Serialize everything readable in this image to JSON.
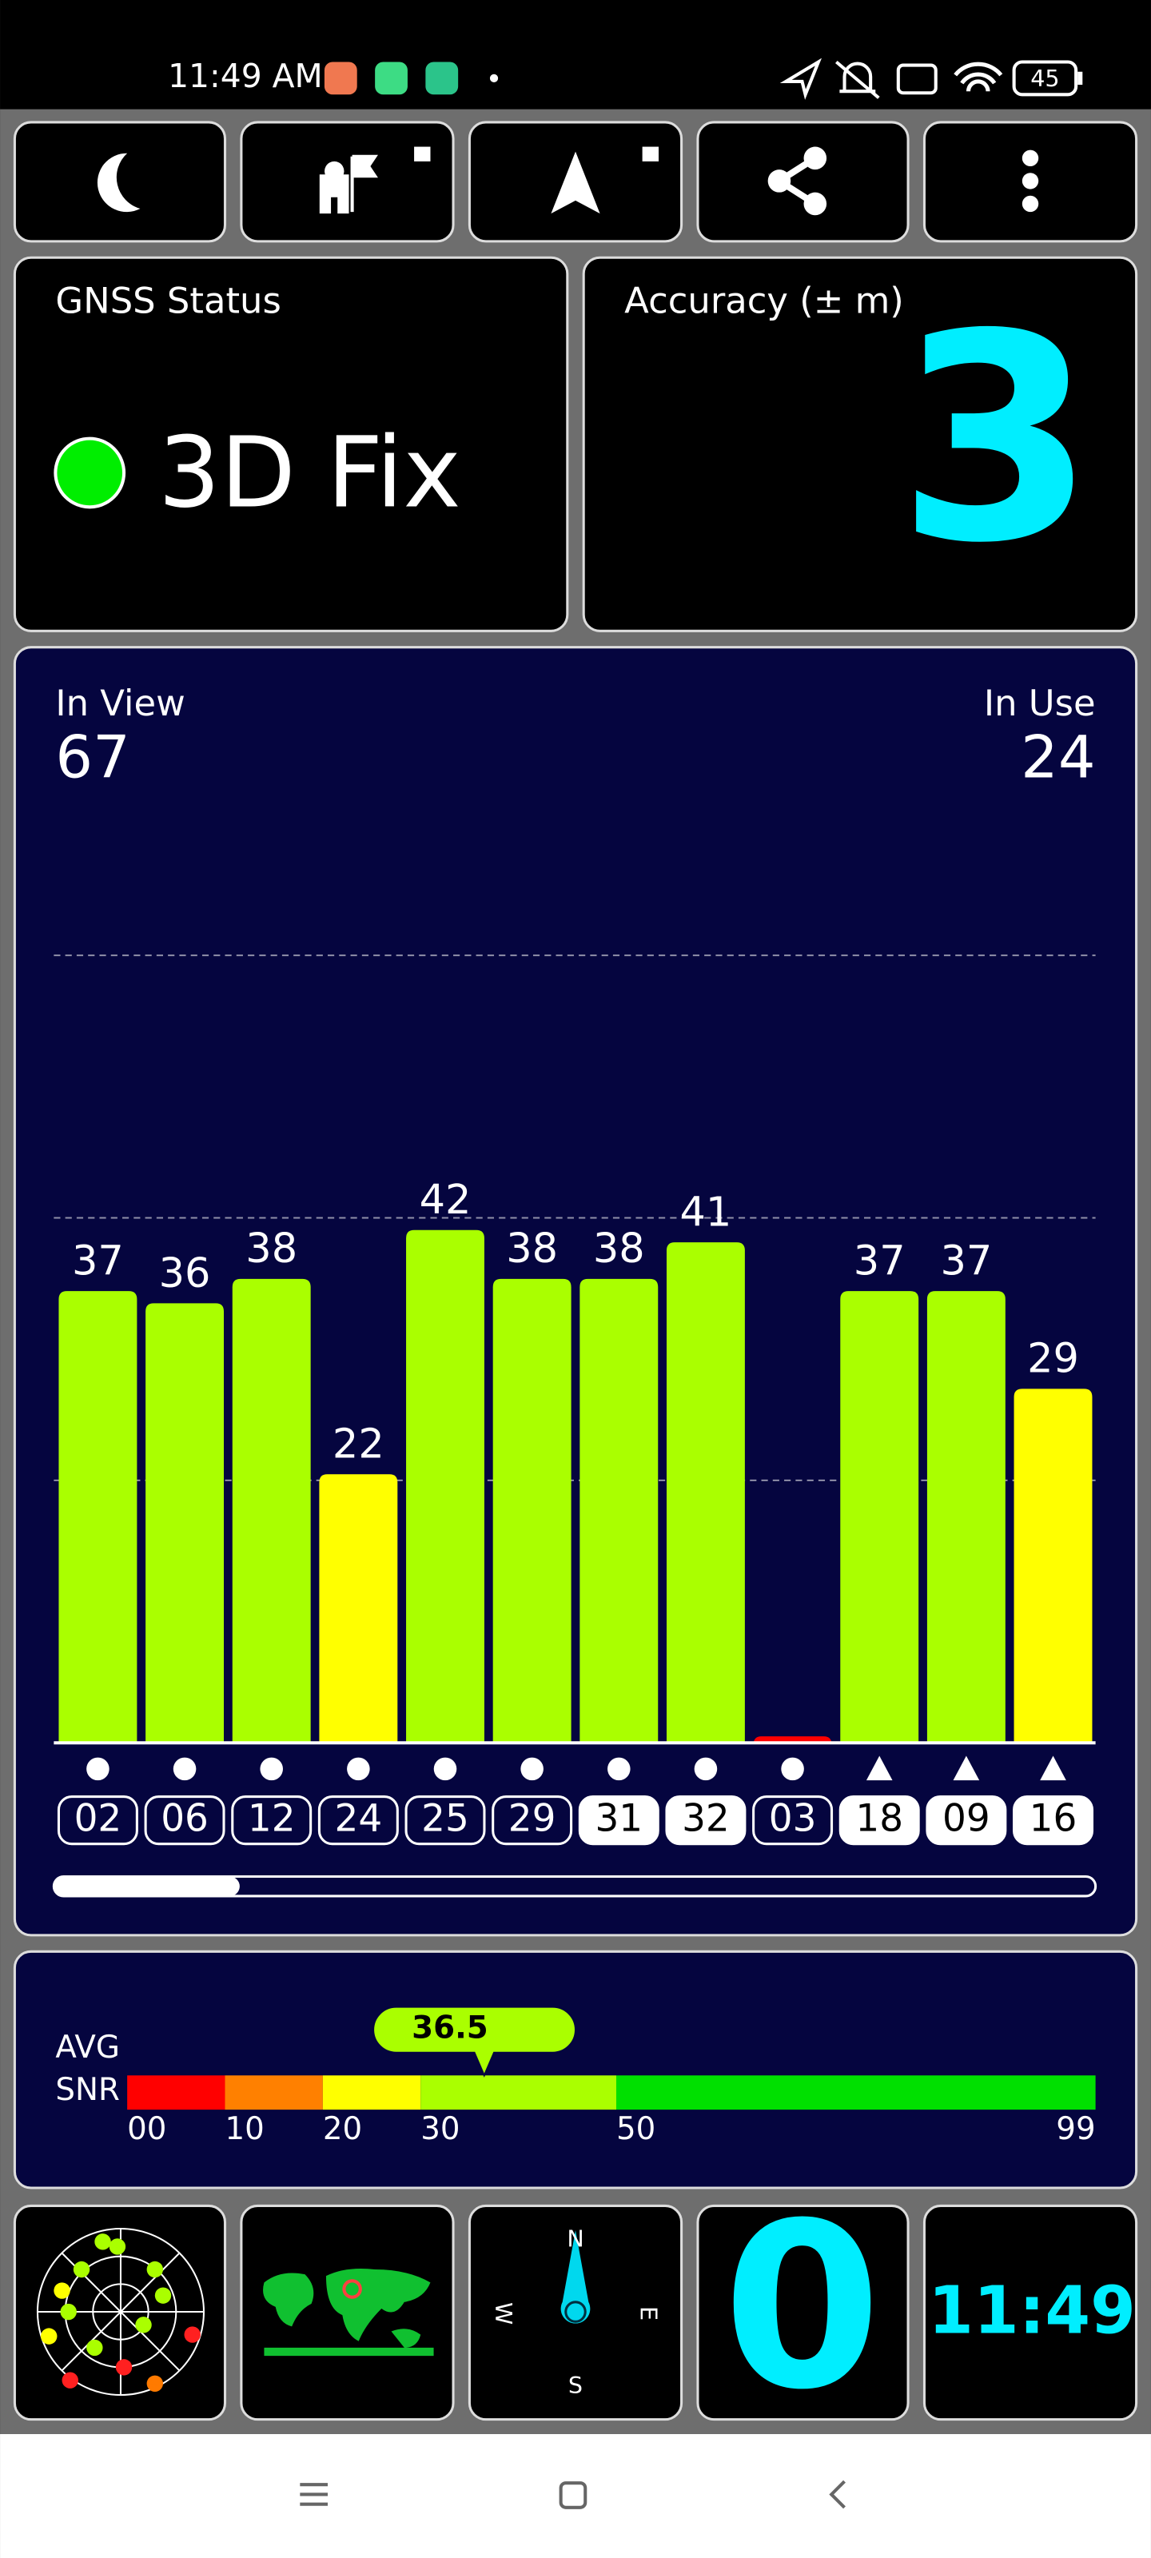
{
  "status_bar": {
    "time": "11:49 AM",
    "battery": "45"
  },
  "gnss_status": {
    "title": "GNSS Status",
    "value": "3D Fix"
  },
  "accuracy": {
    "title": "Accuracy (± m)",
    "value": 3
  },
  "chart_data": {
    "type": "bar",
    "in_view_label": "In View",
    "in_view": 67,
    "in_use_label": "In Use",
    "in_use": 24,
    "categories": [
      "02",
      "06",
      "12",
      "24",
      "25",
      "29",
      "31",
      "32",
      "03",
      "18",
      "09",
      "16"
    ],
    "values": [
      37,
      36,
      38,
      22,
      42,
      38,
      38,
      41,
      0,
      37,
      37,
      29
    ],
    "ylim": [
      0,
      86
    ]
  },
  "avg_snr": {
    "label_lines": [
      "AVG",
      "SNR"
    ],
    "value": 36.5,
    "xlim": [
      0,
      99
    ],
    "ticks": [
      {
        "value": 0,
        "label": "00"
      },
      10,
      20,
      30,
      50,
      99
    ],
    "colors": [
      "#ff0000",
      "#ff8000",
      "#ffff00",
      "#aaff00",
      "#00e000"
    ]
  },
  "widgets": {
    "compass": {
      "n": "N",
      "e": "E",
      "s": "S",
      "w": "W"
    },
    "speed": 0,
    "clock": "11:49"
  }
}
